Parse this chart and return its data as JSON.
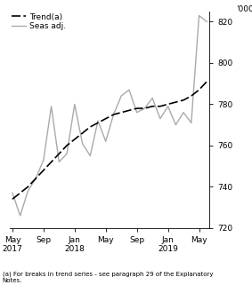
{
  "trend_x": [
    0,
    1,
    2,
    3,
    4,
    5,
    6,
    7,
    8,
    9,
    10,
    11,
    12,
    13,
    14,
    15,
    16,
    17,
    18,
    19,
    20,
    21,
    22,
    23,
    24,
    25
  ],
  "trend_y": [
    734,
    737,
    740,
    744,
    748,
    752,
    756,
    760,
    763,
    766,
    769,
    771,
    773,
    775,
    776,
    777,
    778,
    778,
    779,
    779,
    780,
    781,
    782,
    784,
    787,
    791
  ],
  "seas_x": [
    0,
    1,
    2,
    3,
    4,
    5,
    6,
    7,
    8,
    9,
    10,
    11,
    12,
    13,
    14,
    15,
    16,
    17,
    18,
    19,
    20,
    21,
    22,
    23,
    24,
    25
  ],
  "seas_y": [
    737,
    726,
    738,
    744,
    753,
    779,
    752,
    756,
    780,
    761,
    755,
    772,
    762,
    775,
    784,
    787,
    776,
    778,
    783,
    773,
    779,
    770,
    776,
    771,
    823,
    820
  ],
  "x_tick_positions": [
    0,
    4,
    8,
    12,
    16,
    20,
    24
  ],
  "x_tick_labels": [
    "May\n2017",
    "Sep",
    "Jan\n2018",
    "May",
    "Sep",
    "Jan\n2019",
    "May"
  ],
  "ylim": [
    720,
    825
  ],
  "yticks": [
    720,
    740,
    760,
    780,
    800,
    820
  ],
  "ylabel": "'000",
  "trend_color": "#000000",
  "seas_color": "#aaaaaa",
  "trend_label": "Trend(a)",
  "seas_label": "Seas adj.",
  "footnote": "(a) For breaks in trend series - see paragraph 29 of the Explanatory\nNotes.",
  "trend_linewidth": 1.2,
  "seas_linewidth": 1.0,
  "tick_fontsize": 6.5,
  "legend_fontsize": 6.5,
  "footnote_fontsize": 5.0
}
